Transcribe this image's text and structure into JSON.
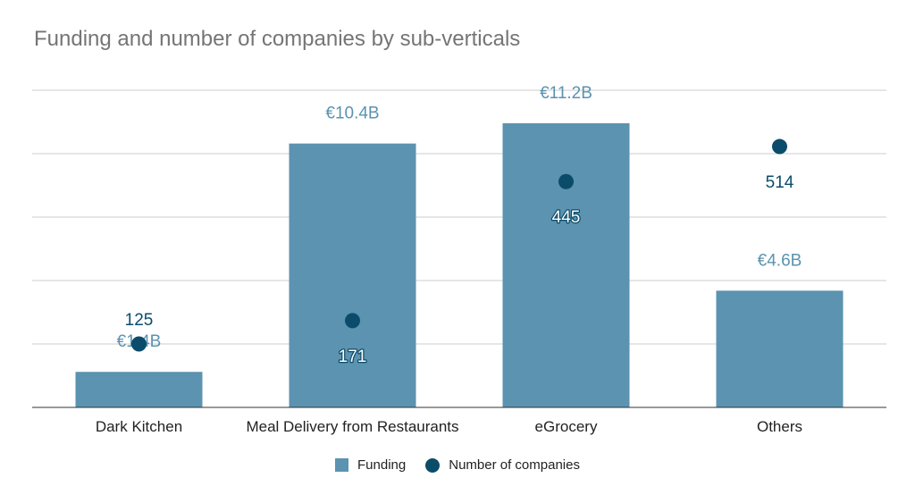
{
  "title": "Funding and number of companies by sub-verticals",
  "colors": {
    "funding": "#5b93b0",
    "companies": "#0b4c6a",
    "grid": "#cccccc",
    "axis": "#333333"
  },
  "legend": {
    "funding_label": "Funding",
    "companies_label": "Number of companies",
    "position": "bottom"
  },
  "chart_data": {
    "type": "bar",
    "categories": [
      "Dark Kitchen",
      "Meal Delivery from Restaurants",
      "eGrocery",
      "Others"
    ],
    "series": [
      {
        "name": "Funding",
        "type": "bar",
        "axis": "left",
        "values": [
          1.4,
          10.4,
          11.2,
          4.6
        ],
        "labels": [
          "€1.4B",
          "€10.4B",
          "€11.2B",
          "€4.6B"
        ],
        "unit": "€B"
      },
      {
        "name": "Number of companies",
        "type": "scatter",
        "axis": "right",
        "values": [
          125,
          171,
          445,
          514
        ],
        "labels": [
          "125",
          "171",
          "445",
          "514"
        ]
      }
    ],
    "left_axis_range": [
      0,
      12.5
    ],
    "right_axis_range": [
      0,
      625
    ],
    "grid": true,
    "axis_tick_labels_shown": false
  }
}
